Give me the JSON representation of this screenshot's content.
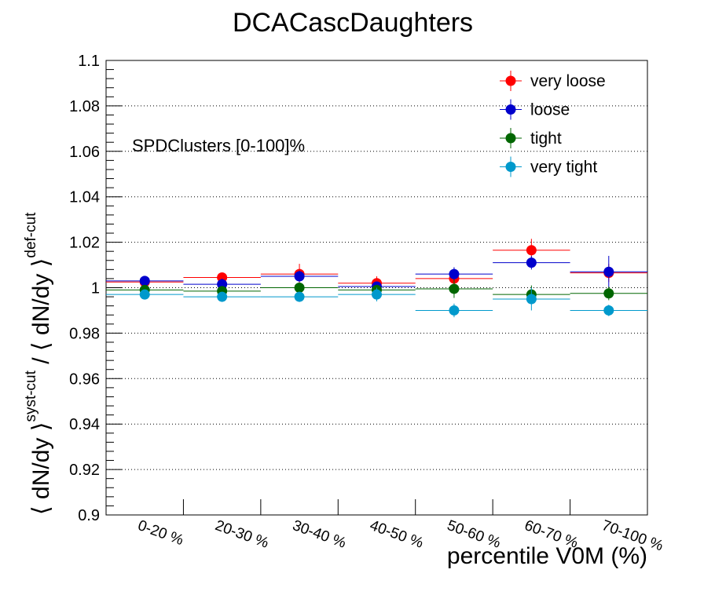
{
  "chart_data": {
    "type": "scatter",
    "title": "DCACascDaughters",
    "xlabel": "percentile V0M (%)",
    "ylabel": {
      "part1": "⟨ dN/dy ⟩",
      "sup1": "syst-cut",
      "slash": " / ",
      "part2": "⟨ dN/dy ⟩",
      "sup2": "def-cut"
    },
    "annotation": "SPDClusters [0-100]%",
    "categories": [
      "0-20 %",
      "20-30 %",
      "30-40 %",
      "40-50 %",
      "50-60 %",
      "60-70 %",
      "70-100 %"
    ],
    "ylim": [
      0.9,
      1.1
    ],
    "yticks": [
      "0.9",
      "0.92",
      "0.94",
      "0.96",
      "0.98",
      "1",
      "1.02",
      "1.04",
      "1.06",
      "1.08",
      "1.1"
    ],
    "grid_y": true,
    "legend_position": "top-right",
    "series": [
      {
        "name": "very loose",
        "color": "#ff0000",
        "values": [
          1.0025,
          1.0045,
          1.006,
          1.002,
          1.004,
          1.0165,
          1.0065
        ],
        "errors": [
          0.002,
          0.002,
          0.0045,
          0.003,
          0.003,
          0.005,
          0.004
        ]
      },
      {
        "name": "loose",
        "color": "#0000cc",
        "values": [
          1.003,
          1.0015,
          1.005,
          1.0005,
          1.006,
          1.011,
          1.007
        ],
        "errors": [
          0.0015,
          0.0025,
          0.0025,
          0.002,
          0.003,
          0.003,
          0.007
        ]
      },
      {
        "name": "tight",
        "color": "#006600",
        "values": [
          0.999,
          0.9985,
          1.0,
          0.999,
          0.9995,
          0.997,
          0.9975
        ],
        "errors": [
          0.0015,
          0.0015,
          0.0015,
          0.0015,
          0.004,
          0.004,
          0.003
        ]
      },
      {
        "name": "very tight",
        "color": "#0099cc",
        "values": [
          0.997,
          0.996,
          0.996,
          0.997,
          0.99,
          0.995,
          0.99
        ],
        "errors": [
          0.0015,
          0.0015,
          0.0015,
          0.003,
          0.003,
          0.005,
          0.0025
        ]
      }
    ]
  }
}
